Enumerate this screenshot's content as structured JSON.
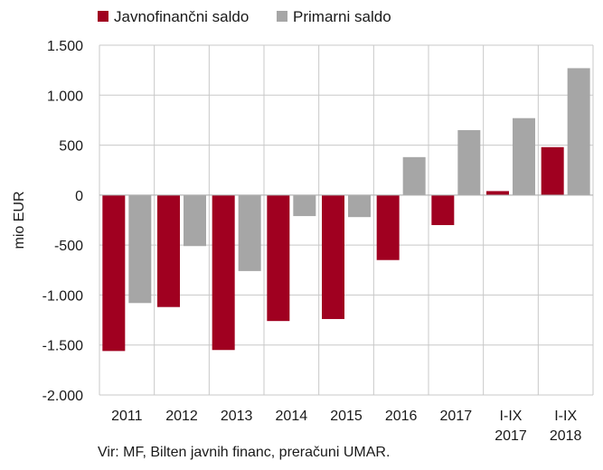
{
  "chart_data": {
    "type": "bar",
    "categories": [
      [
        "2011"
      ],
      [
        "2012"
      ],
      [
        "2013"
      ],
      [
        "2014"
      ],
      [
        "2015"
      ],
      [
        "2016"
      ],
      [
        "2017"
      ],
      [
        "I-IX",
        "2017"
      ],
      [
        "I-IX",
        "2018"
      ]
    ],
    "series": [
      {
        "name": "Javnofinančni saldo",
        "color": "#a00020",
        "values": [
          -1560,
          -1120,
          -1550,
          -1260,
          -1240,
          -650,
          -300,
          40,
          480
        ]
      },
      {
        "name": "Primarni saldo",
        "color": "#a6a6a6",
        "values": [
          -1080,
          -510,
          -760,
          -210,
          -220,
          380,
          650,
          770,
          1270
        ]
      }
    ],
    "ylabel": "mio EUR",
    "ylim": [
      -2000,
      1500
    ],
    "yticks": [
      1500,
      1000,
      500,
      0,
      -500,
      -1000,
      -1500,
      -2000
    ],
    "ytick_labels": [
      "1.500",
      "1.000",
      "500",
      "0",
      "-500",
      "-1.000",
      "-1.500",
      "-2.000"
    ],
    "grid": true,
    "legend_position": "top-left"
  },
  "source_note": "Vir: MF, Bilten javnih financ, preračuni UMAR."
}
